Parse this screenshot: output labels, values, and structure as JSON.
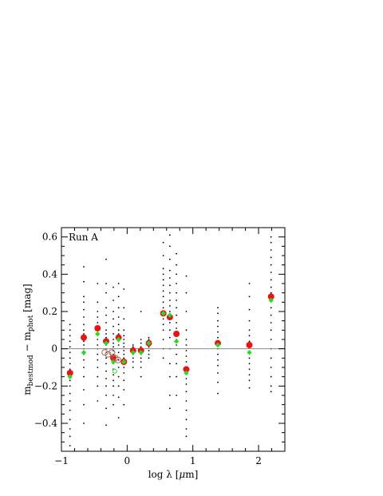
{
  "chart_data": {
    "type": "scatter",
    "panel_label": "Run A",
    "xlabel": {
      "prefix": "log λ [",
      "mu": "μ",
      "suffix": "m]"
    },
    "ylabel": {
      "m1": "m",
      "sub1": "bestmod",
      "dash": " − ",
      "m2": "m",
      "sub2": "phot",
      "unit": " [mag]"
    },
    "xlim": [
      -1,
      2.4
    ],
    "ylim": [
      -0.55,
      0.65
    ],
    "x_ticks": [
      -1,
      0,
      1,
      2
    ],
    "x_tick_labels": [
      "−1",
      "0",
      "1",
      "2"
    ],
    "y_ticks": [
      -0.4,
      -0.2,
      0,
      0.2,
      0.4,
      0.6
    ],
    "y_tick_labels": [
      "−0.4",
      "−0.2",
      "0",
      "0.2",
      "0.4",
      "0.6"
    ],
    "zero_line": 0,
    "colors": {
      "red": "#ee1111",
      "green": "#22dd22",
      "open_circle": "#aa6655",
      "dots": "#000000",
      "zero_line": "#888888"
    },
    "series": [
      {
        "marker": "red-filled-circle",
        "points": [
          {
            "x": -0.87,
            "y": -0.13
          },
          {
            "x": -0.66,
            "y": 0.06
          },
          {
            "x": -0.45,
            "y": 0.11
          },
          {
            "x": -0.32,
            "y": 0.04
          },
          {
            "x": -0.21,
            "y": -0.05
          },
          {
            "x": -0.13,
            "y": 0.06
          },
          {
            "x": -0.05,
            "y": -0.07
          },
          {
            "x": 0.09,
            "y": -0.01
          },
          {
            "x": 0.21,
            "y": -0.01
          },
          {
            "x": 0.33,
            "y": 0.03
          },
          {
            "x": 0.55,
            "y": 0.19
          },
          {
            "x": 0.65,
            "y": 0.17
          },
          {
            "x": 0.75,
            "y": 0.08
          },
          {
            "x": 0.9,
            "y": -0.11
          },
          {
            "x": 1.38,
            "y": 0.03
          },
          {
            "x": 1.86,
            "y": 0.02
          },
          {
            "x": 2.19,
            "y": 0.28
          }
        ]
      },
      {
        "marker": "green-filled-diamond",
        "points": [
          {
            "x": -0.87,
            "y": -0.15
          },
          {
            "x": -0.66,
            "y": -0.02
          },
          {
            "x": -0.45,
            "y": 0.08
          },
          {
            "x": -0.32,
            "y": 0.03
          },
          {
            "x": -0.21,
            "y": -0.07
          },
          {
            "x": -0.13,
            "y": 0.05
          },
          {
            "x": -0.05,
            "y": -0.07
          },
          {
            "x": 0.09,
            "y": -0.02
          },
          {
            "x": 0.21,
            "y": -0.02
          },
          {
            "x": 0.33,
            "y": 0.03
          },
          {
            "x": 0.55,
            "y": 0.19
          },
          {
            "x": 0.65,
            "y": 0.18
          },
          {
            "x": 0.75,
            "y": 0.04
          },
          {
            "x": 0.9,
            "y": -0.13
          },
          {
            "x": 1.38,
            "y": 0.02
          },
          {
            "x": 1.86,
            "y": -0.02
          },
          {
            "x": 2.19,
            "y": 0.26
          }
        ]
      },
      {
        "marker": "open-circle",
        "points": [
          {
            "x": -0.34,
            "y": -0.02
          },
          {
            "x": -0.29,
            "y": -0.03
          },
          {
            "x": -0.23,
            "y": -0.02
          },
          {
            "x": -0.18,
            "y": -0.05
          },
          {
            "x": -0.14,
            "y": -0.06
          }
        ]
      },
      {
        "marker": "green-open-circle",
        "points": [
          {
            "x": -0.19,
            "y": -0.12
          }
        ]
      },
      {
        "marker": "black-dots",
        "columns": [
          {
            "x": -0.87,
            "ys": [
              -0.52,
              -0.47,
              -0.43,
              -0.38,
              -0.33,
              -0.28,
              -0.24,
              -0.2,
              -0.17,
              -0.14,
              -0.11,
              -0.08,
              -0.05,
              -0.02,
              0.01,
              0.04,
              0.07,
              0.1,
              0.13
            ]
          },
          {
            "x": -0.66,
            "ys": [
              -0.4,
              -0.3,
              -0.22,
              -0.15,
              -0.1,
              -0.06,
              -0.03,
              0,
              0.02,
              0.04,
              0.06,
              0.08,
              0.1,
              0.13,
              0.17,
              0.21,
              0.25,
              0.28,
              0.36,
              0.44
            ]
          },
          {
            "x": -0.45,
            "ys": [
              -0.28,
              -0.2,
              -0.15,
              -0.1,
              -0.06,
              -0.03,
              0,
              0.02,
              0.05,
              0.08,
              0.1,
              0.12,
              0.14,
              0.17,
              0.2,
              0.25,
              0.35
            ]
          },
          {
            "x": -0.32,
            "ys": [
              -0.41,
              -0.32,
              -0.25,
              -0.2,
              -0.16,
              -0.12,
              -0.08,
              -0.05,
              -0.02,
              0,
              0.02,
              0.04,
              0.06,
              0.08,
              0.1,
              0.14,
              0.18,
              0.22,
              0.3,
              0.35,
              0.48
            ]
          },
          {
            "x": -0.21,
            "ys": [
              -0.3,
              -0.25,
              -0.2,
              -0.17,
              -0.14,
              -0.11,
              -0.08,
              -0.05,
              -0.03,
              -0.01,
              0.01,
              0.03,
              0.05,
              0.08,
              0.12,
              0.16,
              0.2,
              0.26,
              0.33
            ]
          },
          {
            "x": -0.13,
            "ys": [
              -0.37,
              -0.26,
              -0.2,
              -0.15,
              -0.1,
              -0.06,
              -0.02,
              0.02,
              0.04,
              0.06,
              0.08,
              0.1,
              0.13,
              0.17,
              0.22,
              0.28,
              0.35
            ]
          },
          {
            "x": -0.05,
            "ys": [
              -0.3,
              -0.22,
              -0.17,
              -0.13,
              -0.1,
              -0.07,
              -0.05,
              -0.03,
              -0.01,
              0.01,
              0.03,
              0.05,
              0.07,
              0.1,
              0.16,
              0.22,
              0.32
            ]
          },
          {
            "x": 0.09,
            "ys": [
              -0.1,
              -0.07,
              -0.05,
              -0.03,
              -0.02,
              -0.01,
              0,
              0.01,
              0.02
            ]
          },
          {
            "x": 0.21,
            "ys": [
              -0.15,
              -0.1,
              -0.07,
              -0.05,
              -0.03,
              -0.02,
              -0.01,
              0,
              0.01,
              0.03,
              0.05,
              0.2
            ]
          },
          {
            "x": 0.33,
            "ys": [
              -0.05,
              -0.03,
              -0.01,
              0.01,
              0.02,
              0.03,
              0.04,
              0.05,
              0.06
            ]
          },
          {
            "x": 0.55,
            "ys": [
              -0.05,
              0,
              0.05,
              0.1,
              0.13,
              0.16,
              0.18,
              0.2,
              0.22,
              0.25,
              0.28,
              0.31,
              0.34,
              0.37,
              0.4,
              0.43,
              0.5,
              0.57
            ]
          },
          {
            "x": 0.65,
            "ys": [
              -0.32,
              -0.25,
              -0.15,
              -0.08,
              0,
              0.06,
              0.1,
              0.14,
              0.17,
              0.2,
              0.23,
              0.26,
              0.3,
              0.34,
              0.38,
              0.42,
              0.48,
              0.55,
              0.61
            ]
          },
          {
            "x": 0.75,
            "ys": [
              -0.25,
              -0.15,
              -0.08,
              -0.03,
              0.02,
              0.05,
              0.08,
              0.11,
              0.14,
              0.18,
              0.22,
              0.26,
              0.3,
              0.35,
              0.4,
              0.45,
              0.51
            ]
          },
          {
            "x": 0.9,
            "ys": [
              -0.47,
              -0.43,
              -0.38,
              -0.33,
              -0.28,
              -0.23,
              -0.19,
              -0.16,
              -0.13,
              -0.1,
              -0.07,
              -0.04,
              -0.01,
              0.02,
              0.05,
              0.1,
              0.2,
              0.3,
              0.39
            ]
          },
          {
            "x": 1.38,
            "ys": [
              -0.24,
              -0.18,
              -0.13,
              -0.09,
              -0.06,
              -0.03,
              0,
              0.03,
              0.06,
              0.09,
              0.12,
              0.15,
              0.19,
              0.22
            ]
          },
          {
            "x": 1.86,
            "ys": [
              -0.21,
              -0.17,
              -0.14,
              -0.11,
              -0.08,
              -0.05,
              -0.02,
              0.01,
              0.04,
              0.07,
              0.1,
              0.15,
              0.21,
              0.28,
              0.35
            ]
          },
          {
            "x": 2.19,
            "ys": [
              -0.23,
              -0.2,
              -0.15,
              -0.1,
              -0.05,
              0,
              0.05,
              0.1,
              0.14,
              0.18,
              0.22,
              0.26,
              0.3,
              0.33,
              0.37,
              0.41,
              0.45,
              0.49,
              0.53,
              0.57,
              0.6
            ]
          }
        ]
      }
    ]
  }
}
